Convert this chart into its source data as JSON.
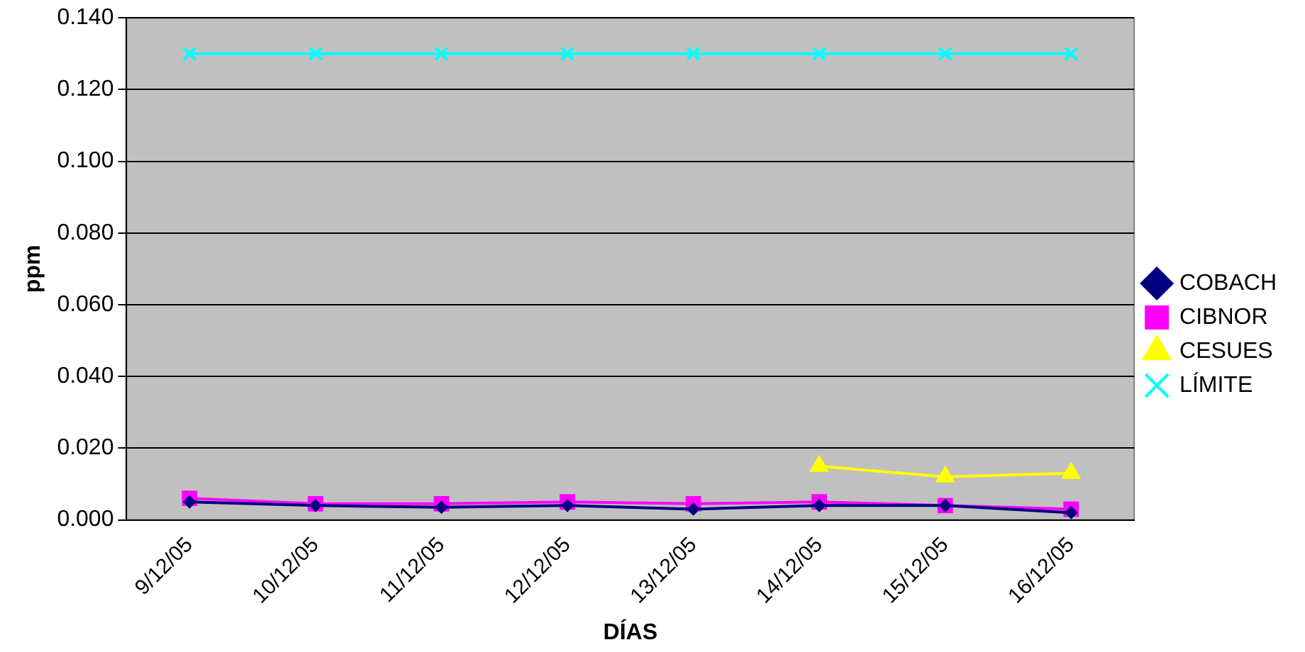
{
  "chart_data": {
    "type": "line",
    "xlabel": "DÍAS",
    "ylabel": "ppm",
    "categories": [
      "9/12/05",
      "10/12/05",
      "11/12/05",
      "12/12/05",
      "13/12/05",
      "14/12/05",
      "15/12/05",
      "16/12/05"
    ],
    "ylim": [
      0,
      0.14
    ],
    "yticks": [
      {
        "value": 0,
        "label": "0.000"
      },
      {
        "value": 0.02,
        "label": "0.020"
      },
      {
        "value": 0.04,
        "label": "0.040"
      },
      {
        "value": 0.06,
        "label": "0.060"
      },
      {
        "value": 0.08,
        "label": "0.080"
      },
      {
        "value": 0.1,
        "label": "0.100"
      },
      {
        "value": 0.12,
        "label": "0.120"
      },
      {
        "value": 0.14,
        "label": "0.140"
      }
    ],
    "grid": "y",
    "legend": "right",
    "series": [
      {
        "name": "COBACH",
        "color": "#000080",
        "marker": "diamond",
        "values": [
          0.005,
          0.004,
          0.0035,
          0.004,
          0.003,
          0.004,
          0.004,
          0.002
        ]
      },
      {
        "name": "CIBNOR",
        "color": "#ff00ff",
        "marker": "square",
        "values": [
          0.006,
          0.0045,
          0.0045,
          0.005,
          0.0045,
          0.005,
          0.004,
          0.003
        ]
      },
      {
        "name": "CESUES",
        "color": "#ffff00",
        "marker": "triangle",
        "values": [
          null,
          null,
          null,
          null,
          null,
          0.015,
          0.012,
          0.013
        ]
      },
      {
        "name": "LÍMITE",
        "color": "#00ffff",
        "marker": "cross",
        "values": [
          0.13,
          0.13,
          0.13,
          0.13,
          0.13,
          0.13,
          0.13,
          0.13
        ]
      }
    ]
  }
}
